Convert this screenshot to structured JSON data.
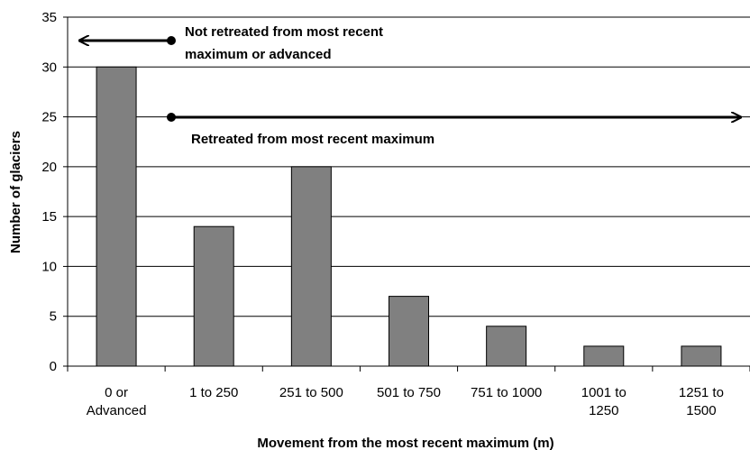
{
  "chart_data": {
    "type": "bar",
    "categories": [
      [
        "0 or",
        "Advanced"
      ],
      [
        "1 to 250"
      ],
      [
        "251 to 500"
      ],
      [
        "501 to 750"
      ],
      [
        "751 to 1000"
      ],
      [
        "1001 to",
        "1250"
      ],
      [
        "1251 to",
        "1500"
      ]
    ],
    "values": [
      30,
      14,
      20,
      7,
      4,
      2,
      2
    ],
    "ylabel": "Number of glaciers",
    "xlabel": "Movement from the most recent maximum (m)",
    "ylim": [
      0,
      35
    ],
    "yticks": [
      0,
      5,
      10,
      15,
      20,
      25,
      30,
      35
    ],
    "grid": true,
    "bar_color": "#808080",
    "annotations": [
      {
        "lines": [
          "Not retreated from most recent",
          "maximum or advanced"
        ],
        "arrow": "left"
      },
      {
        "lines": [
          "Retreated from most recent maximum"
        ],
        "arrow": "right"
      }
    ]
  }
}
